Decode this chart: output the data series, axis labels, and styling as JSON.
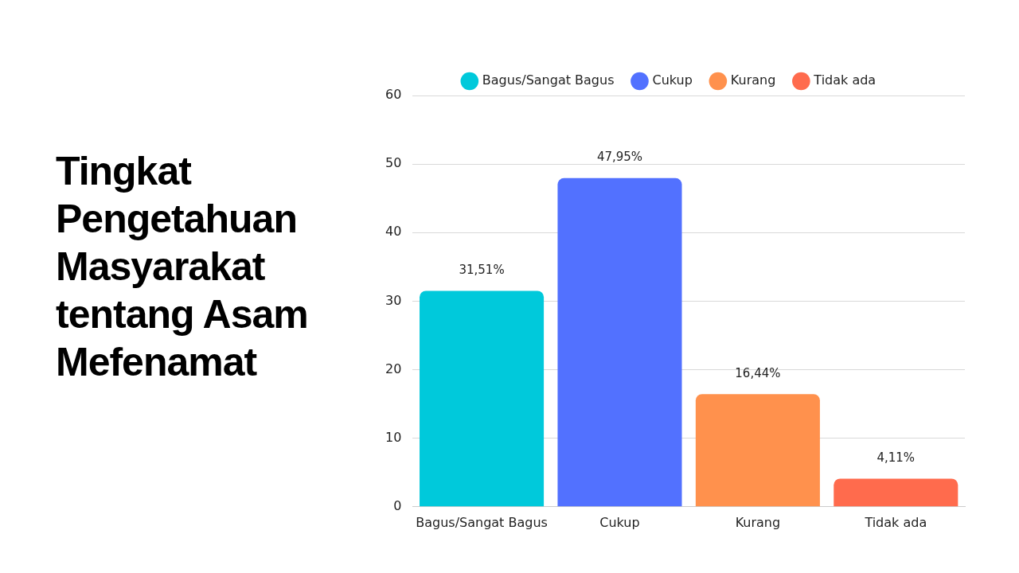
{
  "chart_data": {
    "type": "bar",
    "title": "Tingkat Pengetahuan Masyarakat tentang Asam Mefenamat",
    "categories": [
      "Bagus/Sangat Bagus",
      "Cukup",
      "Kurang",
      "Tidak ada"
    ],
    "series": [
      {
        "name": "Bagus/Sangat Bagus",
        "color": "#00c9db",
        "values": [
          31.51,
          null,
          null,
          null
        ],
        "value_labels": [
          "31,51%",
          null,
          null,
          null
        ]
      },
      {
        "name": "Cukup",
        "color": "#5271ff",
        "values": [
          null,
          47.95,
          null,
          null
        ],
        "value_labels": [
          null,
          "47,95%",
          null,
          null
        ]
      },
      {
        "name": "Kurang",
        "color": "#ff914d",
        "values": [
          null,
          null,
          16.44,
          null
        ],
        "value_labels": [
          null,
          null,
          "16,44%",
          null
        ]
      },
      {
        "name": "Tidak ada",
        "color": "#ff6b4d",
        "values": [
          null,
          null,
          null,
          4.11
        ],
        "value_labels": [
          null,
          null,
          null,
          "4,11%"
        ]
      }
    ],
    "ylim": [
      0,
      60
    ],
    "yticks": [
      0,
      10,
      20,
      30,
      40,
      50,
      60
    ],
    "grid": "y",
    "legend": "top"
  }
}
